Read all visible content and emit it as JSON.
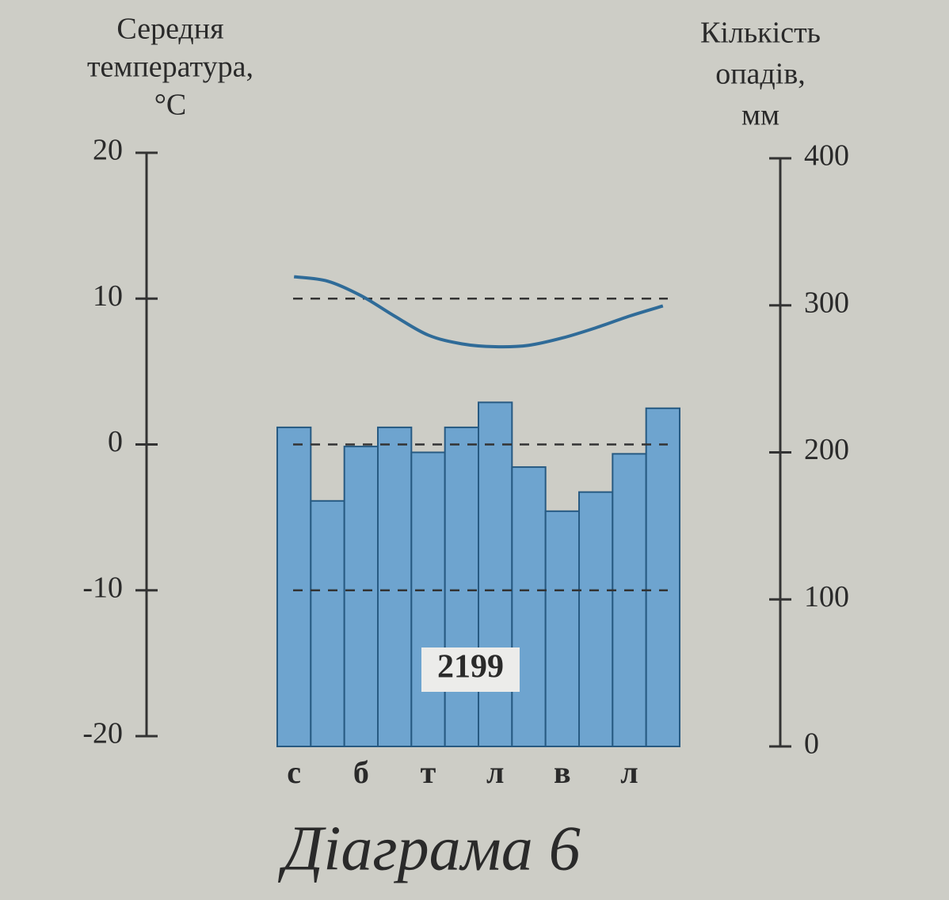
{
  "chart_data": {
    "type": "combo",
    "y_label": [
      "Середня",
      "температура,",
      "°С"
    ],
    "y2_label": [
      "Кількість",
      "опадів,",
      "мм"
    ],
    "categories": [
      "с",
      null,
      "б",
      null,
      "т",
      null,
      "л",
      null,
      "в",
      null,
      "л",
      null
    ],
    "series": [
      {
        "kind": "bar",
        "axis": "y2",
        "color": "#6ea4cf",
        "values": [
          217,
          167,
          204,
          217,
          200,
          217,
          234,
          190,
          160,
          173,
          199,
          230
        ]
      },
      {
        "kind": "line",
        "axis": "y",
        "color": "#2f6b98",
        "values": [
          11.5,
          11.2,
          10.2,
          8.8,
          7.5,
          6.9,
          6.7,
          6.8,
          7.3,
          8.0,
          8.8,
          9.5
        ]
      }
    ],
    "ylim": [
      -20,
      20
    ],
    "yticks": [
      -20,
      -10,
      0,
      10,
      20
    ],
    "y2lim": [
      0,
      400
    ],
    "y2ticks": [
      0,
      100,
      200,
      300,
      400
    ],
    "grid": true,
    "annotation": "2199",
    "caption": "Діаграма 6"
  }
}
